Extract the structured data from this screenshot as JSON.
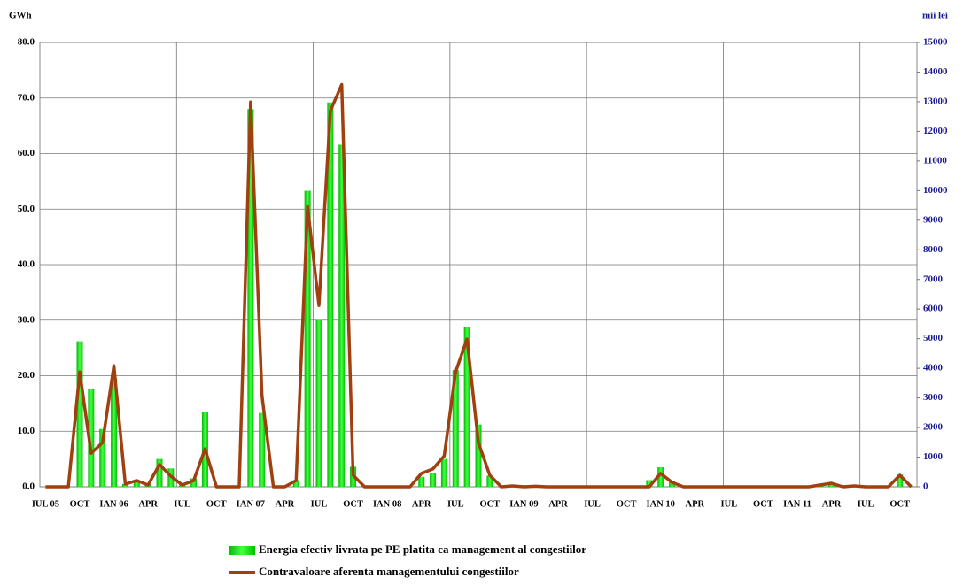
{
  "chart_data": {
    "type": "bar_line",
    "y_label": "GWh",
    "y2_label": "mii lei",
    "categories": [
      "IUL 05",
      null,
      null,
      "OCT",
      null,
      null,
      "IAN 06",
      null,
      null,
      "APR",
      null,
      null,
      "IUL",
      null,
      null,
      "OCT",
      null,
      null,
      "IAN 07",
      null,
      null,
      "APR",
      null,
      null,
      "IUL",
      null,
      null,
      "OCT",
      null,
      null,
      "IAN 08",
      null,
      null,
      "APR",
      null,
      null,
      "IUL",
      null,
      null,
      "OCT",
      null,
      null,
      "IAN 09",
      null,
      null,
      "APR",
      null,
      null,
      "IUL",
      null,
      null,
      "OCT",
      null,
      null,
      "IAN 10",
      null,
      null,
      "APR",
      null,
      null,
      "IUL",
      null,
      null,
      "OCT",
      null,
      null,
      "IAN 11",
      null,
      null,
      "APR",
      null,
      null,
      "IUL",
      null,
      null,
      "OCT",
      null
    ],
    "series": [
      {
        "name": "Energia efectiv livrata pe PE platita ca management al congestiilor",
        "color": "#00dd00",
        "kind": "bar",
        "values": [
          0,
          0,
          0,
          26.2,
          17.6,
          10.4,
          19.5,
          0.5,
          1,
          0.5,
          5,
          3.3,
          0.5,
          1.5,
          13.5,
          0,
          0,
          0,
          68,
          13.3,
          0,
          0,
          1.2,
          53.3,
          30,
          69.2,
          61.6,
          3.6,
          0,
          0,
          0,
          0,
          0,
          1.8,
          2.4,
          5,
          21,
          28.7,
          11.2,
          2,
          0,
          0,
          0,
          0,
          0,
          0,
          0,
          0,
          0,
          0,
          0,
          0,
          0,
          1.2,
          3.5,
          1,
          0,
          0,
          0,
          0,
          0,
          0,
          0,
          0,
          0,
          0,
          0,
          0,
          0.3,
          0.5,
          0,
          0,
          0,
          0,
          0,
          2.2,
          0
        ]
      },
      {
        "name": "Contravaloare aferenta managementului congestiilor",
        "color": "#a0400f",
        "kind": "line",
        "axis": "y2",
        "values": [
          0,
          0,
          0,
          3880,
          1130,
          1490,
          4090,
          90,
          210,
          60,
          750,
          360,
          60,
          210,
          1280,
          0,
          0,
          0,
          12990,
          3070,
          0,
          0,
          210,
          9460,
          6120,
          12690,
          13580,
          390,
          0,
          0,
          0,
          0,
          0,
          450,
          600,
          1040,
          3880,
          4990,
          1490,
          390,
          0,
          30,
          0,
          20,
          0,
          0,
          0,
          0,
          0,
          0,
          0,
          0,
          0,
          0,
          450,
          150,
          0,
          0,
          0,
          0,
          0,
          0,
          0,
          0,
          0,
          0,
          0,
          0,
          60,
          120,
          0,
          30,
          0,
          0,
          0,
          390,
          0
        ]
      }
    ],
    "ylim": [
      0,
      80
    ],
    "yticks": [
      {
        "value": 0,
        "label": "0.0"
      },
      {
        "value": 10,
        "label": "10.0"
      },
      {
        "value": 20,
        "label": "20.0"
      },
      {
        "value": 30,
        "label": "30.0"
      },
      {
        "value": 40,
        "label": "40.0"
      },
      {
        "value": 50,
        "label": "50.0"
      },
      {
        "value": 60,
        "label": "60.0"
      },
      {
        "value": 70,
        "label": "70.0"
      },
      {
        "value": 80,
        "label": "80.0"
      }
    ],
    "y2lim": [
      0,
      15000
    ],
    "y2ticks": [
      0,
      1000,
      2000,
      3000,
      4000,
      5000,
      6000,
      7000,
      8000,
      9000,
      10000,
      11000,
      12000,
      13000,
      14000,
      15000
    ],
    "grid": true,
    "legend": "bottom"
  }
}
